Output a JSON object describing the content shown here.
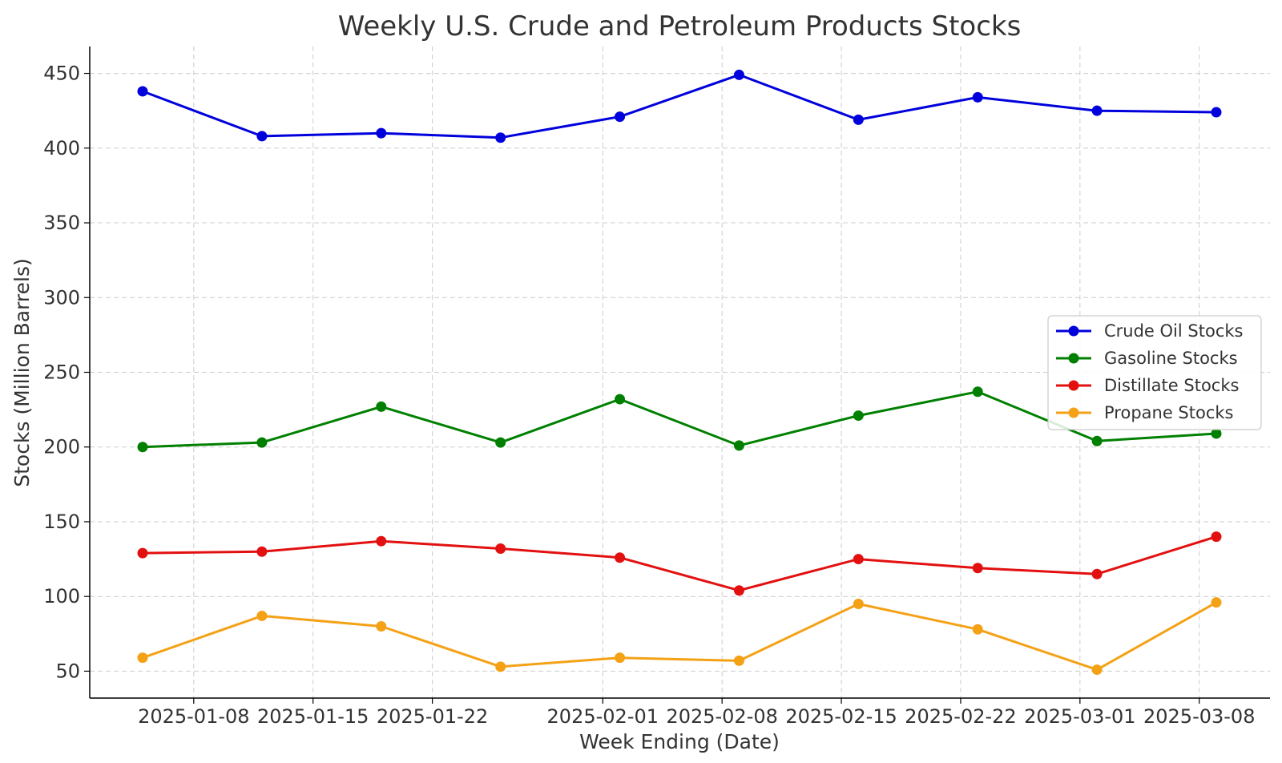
{
  "chart_data": {
    "type": "line",
    "title": "Weekly U.S. Crude and Petroleum Products Stocks",
    "xlabel": "Week Ending (Date)",
    "ylabel": "Stocks (Million Barrels)",
    "x": [
      "2025-01-05",
      "2025-01-12",
      "2025-01-19",
      "2025-01-26",
      "2025-02-02",
      "2025-02-09",
      "2025-02-16",
      "2025-02-23",
      "2025-03-02",
      "2025-03-09"
    ],
    "x_ticks": [
      "2025-01-08",
      "2025-01-15",
      "2025-01-22",
      "2025-02-01",
      "2025-02-08",
      "2025-02-15",
      "2025-02-22",
      "2025-03-01",
      "2025-03-08"
    ],
    "y_ticks": [
      50,
      100,
      150,
      200,
      250,
      300,
      350,
      400,
      450
    ],
    "ylim": [
      32,
      468
    ],
    "grid": true,
    "legend_position": "center-right",
    "series": [
      {
        "name": "Crude Oil Stocks",
        "color": "#0000dd",
        "values": [
          438,
          408,
          410,
          407,
          421,
          449,
          419,
          434,
          425,
          424
        ]
      },
      {
        "name": "Gasoline Stocks",
        "color": "#008000",
        "values": [
          200,
          203,
          227,
          203,
          232,
          201,
          221,
          237,
          204,
          209
        ]
      },
      {
        "name": "Distillate Stocks",
        "color": "#e31010",
        "values": [
          129,
          130,
          137,
          132,
          126,
          104,
          125,
          119,
          115,
          140
        ]
      },
      {
        "name": "Propane Stocks",
        "color": "#f4a116",
        "values": [
          59,
          87,
          80,
          53,
          59,
          57,
          95,
          78,
          51,
          96
        ]
      }
    ]
  }
}
